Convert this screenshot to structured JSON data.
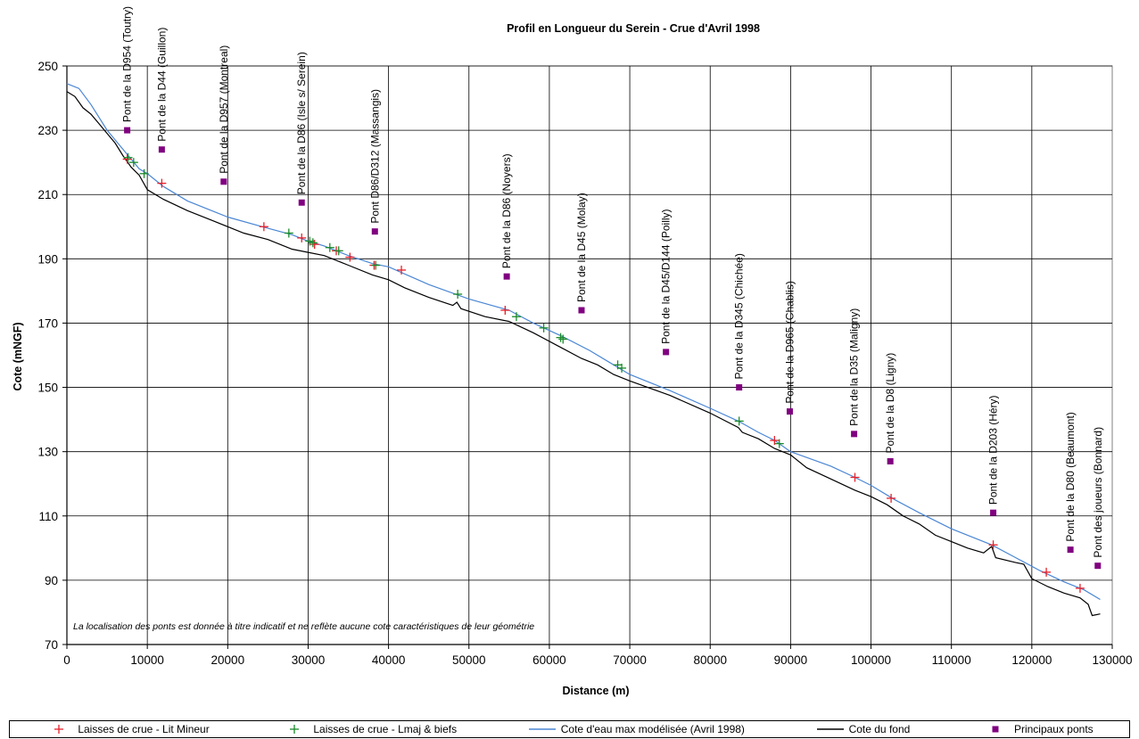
{
  "chart_data": {
    "type": "line",
    "title": "Profil en Longueur du Serein - Crue d'Avril 1998",
    "xlabel": "Distance (m)",
    "ylabel": "Cote (mNGF)",
    "xlim": [
      0,
      130000
    ],
    "ylim": [
      70,
      250
    ],
    "xticks": [
      0,
      10000,
      20000,
      30000,
      40000,
      50000,
      60000,
      70000,
      80000,
      90000,
      100000,
      110000,
      120000,
      130000
    ],
    "yticks": [
      70,
      90,
      110,
      130,
      150,
      170,
      190,
      210,
      230,
      250
    ],
    "grid": true,
    "legend_position": "bottom",
    "annotation": "La localisation des ponts est donnée à titre indicatif et ne reflète aucune cote caractéristiques de leur géométrie",
    "series": [
      {
        "name": "Laisses de crue - Lit Mineur",
        "kind": "scatter",
        "marker": "plus",
        "color": "#e8202a",
        "points": [
          [
            7500,
            221
          ],
          [
            11800,
            213.5
          ],
          [
            24500,
            200
          ],
          [
            29200,
            196.5
          ],
          [
            30800,
            194.5
          ],
          [
            33500,
            192.5
          ],
          [
            35200,
            190.5
          ],
          [
            38200,
            188
          ],
          [
            41600,
            186.5
          ],
          [
            54500,
            174
          ],
          [
            88000,
            133.5
          ],
          [
            98000,
            122
          ],
          [
            102500,
            115.5
          ],
          [
            115200,
            101
          ],
          [
            121800,
            92.5
          ],
          [
            126000,
            87.5
          ]
        ]
      },
      {
        "name": "Laisses de crue - Lmaj & biefs",
        "kind": "scatter",
        "marker": "plus",
        "color": "#1a8a2a",
        "points": [
          [
            7600,
            221.5
          ],
          [
            8300,
            220
          ],
          [
            9600,
            216.5
          ],
          [
            27600,
            198
          ],
          [
            30200,
            195.5
          ],
          [
            30600,
            195
          ],
          [
            32700,
            193.5
          ],
          [
            33800,
            192.5
          ],
          [
            38400,
            188
          ],
          [
            48600,
            179
          ],
          [
            55900,
            172
          ],
          [
            59300,
            168.5
          ],
          [
            61400,
            165.5
          ],
          [
            61700,
            165
          ],
          [
            68500,
            157
          ],
          [
            69000,
            156
          ],
          [
            83600,
            139.5
          ],
          [
            88600,
            132.5
          ]
        ]
      },
      {
        "name": "Cote d'eau max modélisée (Avril 1998)",
        "kind": "line",
        "color": "#4a86d4",
        "points": [
          [
            0,
            244.5
          ],
          [
            1500,
            243
          ],
          [
            3000,
            238
          ],
          [
            5000,
            230
          ],
          [
            7000,
            224
          ],
          [
            9000,
            218
          ],
          [
            10000,
            216.5
          ],
          [
            12000,
            212.5
          ],
          [
            15000,
            208
          ],
          [
            18000,
            205
          ],
          [
            20000,
            203
          ],
          [
            25000,
            199.5
          ],
          [
            28000,
            197.5
          ],
          [
            30000,
            195.5
          ],
          [
            32000,
            194
          ],
          [
            35000,
            191
          ],
          [
            38000,
            188.5
          ],
          [
            40000,
            187.5
          ],
          [
            45000,
            182
          ],
          [
            50000,
            177.5
          ],
          [
            55000,
            174
          ],
          [
            58000,
            170
          ],
          [
            61500,
            166
          ],
          [
            65000,
            161.5
          ],
          [
            68000,
            157
          ],
          [
            70000,
            154
          ],
          [
            75000,
            149
          ],
          [
            80000,
            143.5
          ],
          [
            83500,
            139.5
          ],
          [
            86000,
            136
          ],
          [
            88000,
            133.5
          ],
          [
            90000,
            130
          ],
          [
            95000,
            125.5
          ],
          [
            98000,
            122
          ],
          [
            100000,
            119.5
          ],
          [
            103000,
            115
          ],
          [
            106000,
            111
          ],
          [
            110000,
            106
          ],
          [
            115000,
            101
          ],
          [
            118000,
            97
          ],
          [
            121000,
            93
          ],
          [
            124000,
            89.5
          ],
          [
            126500,
            87
          ],
          [
            128500,
            84
          ]
        ]
      },
      {
        "name": "Cote du fond",
        "kind": "line",
        "color": "#000000",
        "points": [
          [
            0,
            242
          ],
          [
            1000,
            240.5
          ],
          [
            2000,
            237
          ],
          [
            3000,
            235
          ],
          [
            4000,
            232
          ],
          [
            5000,
            229
          ],
          [
            6000,
            226
          ],
          [
            7000,
            222
          ],
          [
            8000,
            218.5
          ],
          [
            9000,
            216
          ],
          [
            10000,
            211.5
          ],
          [
            12000,
            208.5
          ],
          [
            15000,
            205
          ],
          [
            18000,
            202
          ],
          [
            20000,
            200
          ],
          [
            22000,
            198
          ],
          [
            25000,
            196
          ],
          [
            27000,
            194
          ],
          [
            28000,
            193
          ],
          [
            30000,
            192
          ],
          [
            32000,
            191
          ],
          [
            35000,
            188
          ],
          [
            38000,
            185
          ],
          [
            40000,
            183.5
          ],
          [
            42000,
            181
          ],
          [
            45000,
            178
          ],
          [
            48000,
            175.5
          ],
          [
            48500,
            176.5
          ],
          [
            49000,
            174.5
          ],
          [
            52000,
            172
          ],
          [
            55000,
            170.5
          ],
          [
            58000,
            167
          ],
          [
            61000,
            163
          ],
          [
            64000,
            159
          ],
          [
            66000,
            157
          ],
          [
            68000,
            154
          ],
          [
            70000,
            152
          ],
          [
            75000,
            147.5
          ],
          [
            80000,
            142
          ],
          [
            83500,
            137.5
          ],
          [
            84000,
            136
          ],
          [
            86000,
            134
          ],
          [
            88000,
            131
          ],
          [
            90000,
            129
          ],
          [
            92000,
            125
          ],
          [
            95000,
            121.5
          ],
          [
            98000,
            118
          ],
          [
            100000,
            116
          ],
          [
            102000,
            113.5
          ],
          [
            104000,
            110
          ],
          [
            106000,
            107.5
          ],
          [
            108000,
            104
          ],
          [
            110000,
            102
          ],
          [
            112000,
            100
          ],
          [
            114000,
            98.5
          ],
          [
            115000,
            100.5
          ],
          [
            115500,
            97
          ],
          [
            118000,
            95.5
          ],
          [
            119000,
            95
          ],
          [
            120000,
            90.5
          ],
          [
            122000,
            88
          ],
          [
            124000,
            86
          ],
          [
            126000,
            84.5
          ],
          [
            127000,
            82.5
          ],
          [
            127500,
            79
          ],
          [
            128500,
            79.5
          ]
        ]
      },
      {
        "name": "Principaux ponts",
        "kind": "scatter",
        "marker": "square",
        "color": "#800080",
        "points": [
          [
            7500,
            230,
            "Pont de la D954 (Toutry)"
          ],
          [
            11800,
            224,
            "Pont de la D44 (Guillon)"
          ],
          [
            19500,
            214,
            "Pont de la D957 (Montreal)"
          ],
          [
            29200,
            207.5,
            "Pont de la D86 (Isle s/ Serein)"
          ],
          [
            38300,
            198.5,
            "Pont D86/D312 (Massangis)"
          ],
          [
            54700,
            184.5,
            "Pont de la D86 (Noyers)"
          ],
          [
            64000,
            174,
            "Pont de la D45 (Molay)"
          ],
          [
            74500,
            161,
            "Pont de la D45/D144 (Poilly)"
          ],
          [
            83600,
            150,
            "Pont de la D345 (Chichée)"
          ],
          [
            89900,
            142.5,
            "Pont de la D965 (Chablis)"
          ],
          [
            97900,
            135.5,
            "Pont de la D35 (Maligny)"
          ],
          [
            102400,
            127,
            "Pont de la D8 (Ligny)"
          ],
          [
            115200,
            111,
            "Pont de la D203 (Héry)"
          ],
          [
            124800,
            99.5,
            "Pont de la D80 (Beaumont)"
          ],
          [
            128200,
            94.5,
            "Pont des joueurs (Bonnard)"
          ]
        ]
      }
    ]
  }
}
